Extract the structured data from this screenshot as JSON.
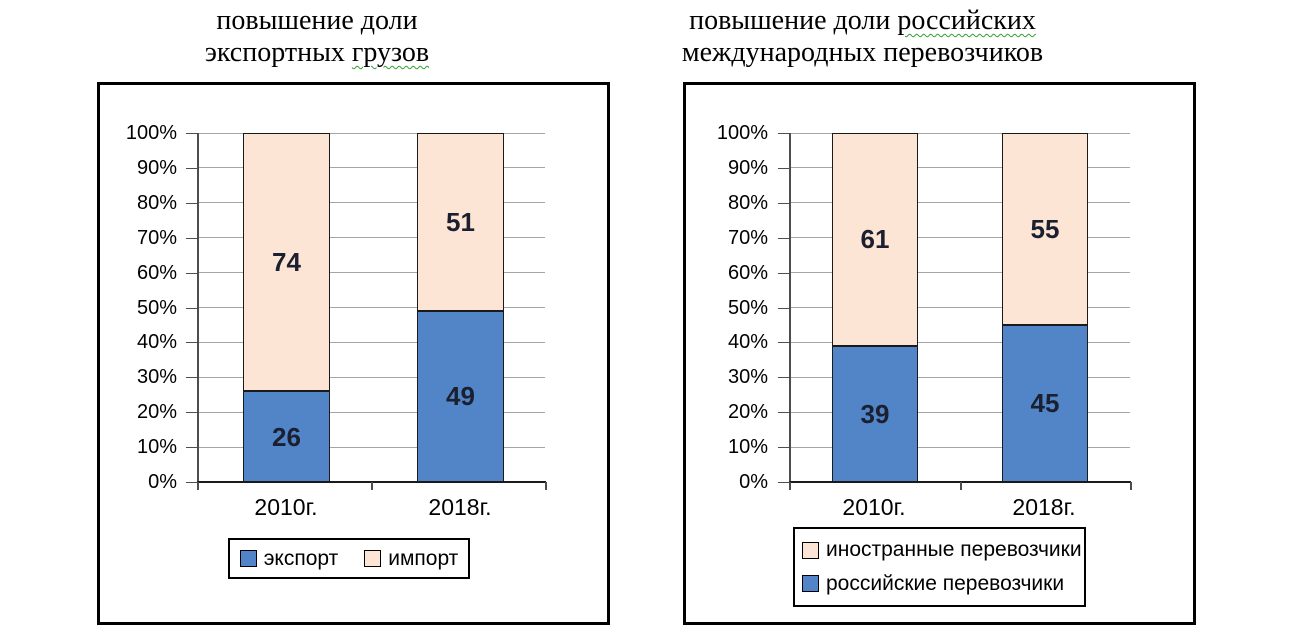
{
  "colors": {
    "bar_blue": "#5285C8",
    "bar_peach": "#FCE5D5",
    "bar_border": "#1a1a1a",
    "gridline": "#A6A6A6",
    "axis": "#4D4D4D",
    "value_label": "#1B2030",
    "squiggle_green": "#2F9E2F"
  },
  "chart_data": [
    {
      "type": "bar",
      "stacked_percent": true,
      "title": "повышение доли экспортных грузов",
      "title_lines": {
        "line1_plain": "повышение доли",
        "line1_underlined": "",
        "line2_plain": "экспортных ",
        "line2_underlined": "грузов"
      },
      "categories": [
        "2010г.",
        "2018г."
      ],
      "series": [
        {
          "name": "экспорт",
          "color": "#5285C8",
          "values": [
            26,
            49
          ]
        },
        {
          "name": "импорт",
          "color": "#FCE5D5",
          "values": [
            74,
            51
          ]
        }
      ],
      "ytick_labels": [
        "0%",
        "10%",
        "20%",
        "30%",
        "40%",
        "50%",
        "60%",
        "70%",
        "80%",
        "90%",
        "100%"
      ],
      "ylim": [
        0,
        100
      ],
      "grid": true,
      "legend_position": "bottom"
    },
    {
      "type": "bar",
      "stacked_percent": true,
      "title": "повышение доли российских международных перевозчиков",
      "title_lines": {
        "line1_plain": "повышение доли ",
        "line1_underlined": "российских",
        "line2_plain": "международных перевозчиков",
        "line2_underlined": ""
      },
      "categories": [
        "2010г.",
        "2018г."
      ],
      "series": [
        {
          "name": "российские перевозчики",
          "color": "#5285C8",
          "values": [
            39,
            45
          ]
        },
        {
          "name": "иностранные перевозчики",
          "color": "#FCE5D5",
          "values": [
            61,
            55
          ]
        }
      ],
      "ytick_labels": [
        "0%",
        "10%",
        "20%",
        "30%",
        "40%",
        "50%",
        "60%",
        "70%",
        "80%",
        "90%",
        "100%"
      ],
      "ylim": [
        0,
        100
      ],
      "grid": true,
      "legend_position": "bottom"
    }
  ]
}
